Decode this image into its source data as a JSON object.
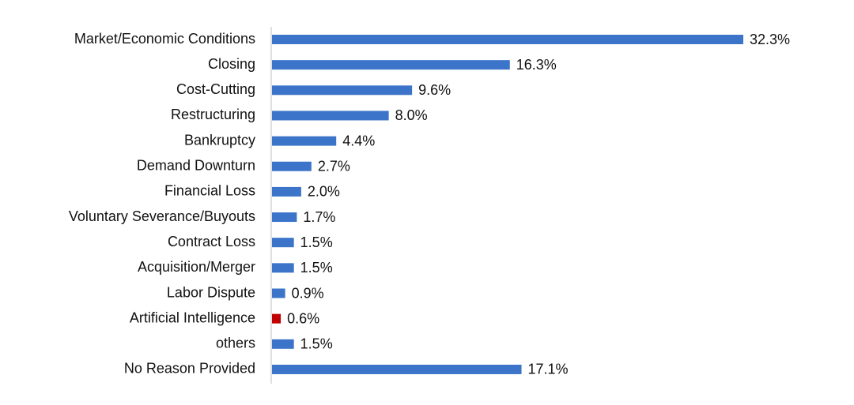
{
  "chart_data": {
    "type": "bar",
    "orientation": "horizontal",
    "categories": [
      "Market/Economic Conditions",
      "Closing",
      "Cost-Cutting",
      "Restructuring",
      "Bankruptcy",
      "Demand Downturn",
      "Financial Loss",
      "Voluntary Severance/Buyouts",
      "Contract Loss",
      "Acquisition/Merger",
      "Labor Dispute",
      "Artificial Intelligence",
      "others",
      "No Reason Provided"
    ],
    "values": [
      32.3,
      16.3,
      9.6,
      8.0,
      4.4,
      2.7,
      2.0,
      1.7,
      1.5,
      1.5,
      0.9,
      0.6,
      1.5,
      17.1
    ],
    "value_labels": [
      "32.3%",
      "16.3%",
      "9.6%",
      "8.0%",
      "4.4%",
      "2.7%",
      "2.0%",
      "1.7%",
      "1.5%",
      "1.5%",
      "0.9%",
      "0.6%",
      "1.5%",
      "17.1%"
    ],
    "colors": [
      "#3b74c9",
      "#3b74c9",
      "#3b74c9",
      "#3b74c9",
      "#3b74c9",
      "#3b74c9",
      "#3b74c9",
      "#3b74c9",
      "#3b74c9",
      "#3b74c9",
      "#3b74c9",
      "#c00000",
      "#3b74c9",
      "#3b74c9"
    ]
  }
}
